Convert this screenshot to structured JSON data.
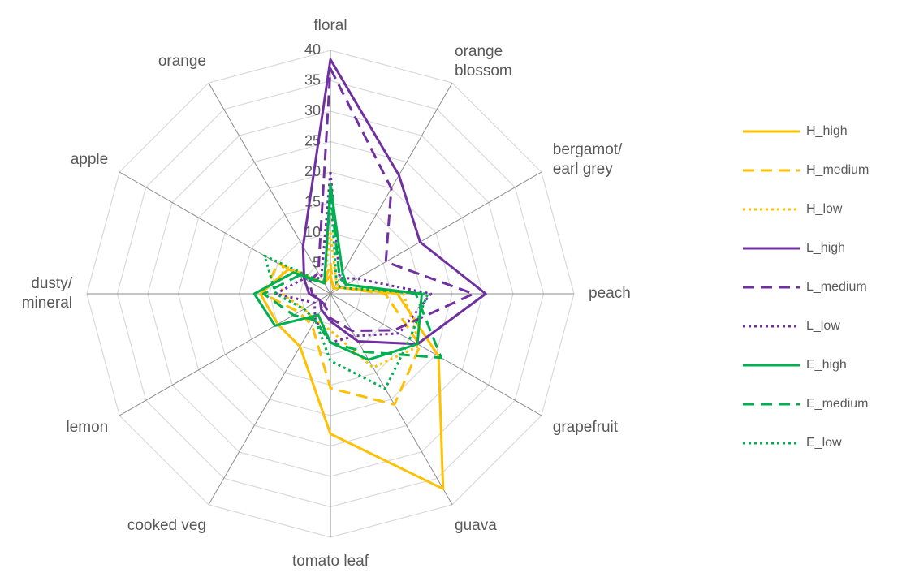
{
  "chart_data": {
    "type": "radar",
    "categories": [
      [
        "floral"
      ],
      [
        "orange",
        "blossom"
      ],
      [
        "bergamot/",
        "earl grey"
      ],
      [
        "peach"
      ],
      [
        "grapefruit"
      ],
      [
        "guava"
      ],
      [
        "tomato leaf"
      ],
      [
        "cooked veg"
      ],
      [
        "lemon"
      ],
      [
        "dusty/",
        "mineral"
      ],
      [
        "apple"
      ],
      [
        "orange"
      ]
    ],
    "rlim": [
      0,
      40
    ],
    "rticks": [
      5,
      10,
      15,
      20,
      25,
      30,
      35,
      40
    ],
    "grid": true,
    "legend": "right",
    "series": [
      {
        "name": "H_high",
        "color": "#FFC000",
        "line_style": "solid",
        "values": [
          3,
          1,
          2,
          11,
          20.5,
          37,
          23,
          10,
          10,
          11.5,
          8,
          2
        ]
      },
      {
        "name": "H_medium",
        "color": "#FFC000",
        "line_style": "dashed",
        "values": [
          5,
          1,
          2,
          9,
          17,
          21,
          15.5,
          6,
          6,
          11,
          10,
          2
        ]
      },
      {
        "name": "H_low",
        "color": "#FFC000",
        "line_style": "dotted",
        "values": [
          10,
          2,
          2,
          12,
          17,
          14,
          6,
          5,
          5,
          8,
          9,
          2
        ]
      },
      {
        "name": "L_high",
        "color": "#7030A0",
        "line_style": "solid",
        "values": [
          38.5,
          22.5,
          17,
          25.5,
          16.5,
          9,
          4.5,
          3,
          2,
          3.5,
          5,
          9
        ]
      },
      {
        "name": "L_medium",
        "color": "#7030A0",
        "line_style": "dashed",
        "values": [
          37,
          20,
          10.5,
          23.5,
          12,
          7,
          4,
          2,
          2,
          3,
          4,
          4
        ]
      },
      {
        "name": "L_low",
        "color": "#7030A0",
        "line_style": "dotted",
        "values": [
          20,
          3,
          5,
          16.5,
          13,
          8,
          8,
          5,
          3,
          9,
          5,
          3
        ]
      },
      {
        "name": "E_high",
        "color": "#00B050",
        "line_style": "solid",
        "values": [
          18,
          4,
          3,
          15,
          16.5,
          12.5,
          8,
          4,
          10.5,
          12.5,
          7,
          2
        ]
      },
      {
        "name": "E_medium",
        "color": "#00B050",
        "line_style": "dashed",
        "values": [
          17,
          3,
          3,
          14,
          21,
          11,
          8,
          5,
          7,
          11,
          6,
          2
        ]
      },
      {
        "name": "E_low",
        "color": "#00B050",
        "line_style": "dotted",
        "values": [
          17,
          2,
          2,
          16,
          15,
          18,
          11,
          5,
          5,
          9,
          12.5,
          2
        ]
      }
    ]
  }
}
